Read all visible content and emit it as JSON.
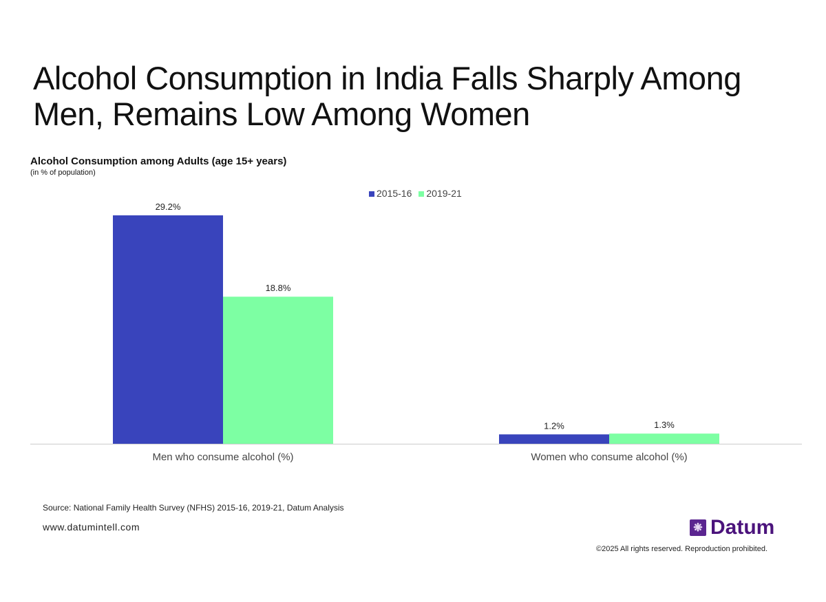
{
  "title": "Alcohol Consumption in India Falls Sharply Among Men, Remains Low Among Women",
  "chart_data": {
    "type": "bar",
    "title": "Alcohol Consumption among Adults (age 15+ years)",
    "subtitle": "(in % of population)",
    "categories": [
      "Men who consume alcohol (%)",
      "Women who consume alcohol (%)"
    ],
    "series": [
      {
        "name": "2015-16",
        "values": [
          29.2,
          1.2
        ],
        "labels": [
          "29.2%",
          "1.2%"
        ],
        "color": "#3944bc"
      },
      {
        "name": "2019-21",
        "values": [
          18.8,
          1.3
        ],
        "labels": [
          "18.8%",
          "1.3%"
        ],
        "color": "#7dffa3"
      }
    ],
    "ylim": [
      0,
      29.2
    ],
    "grid": false,
    "legend": "top-center"
  },
  "footer": {
    "source": "Source: National Family Health Survey (NFHS) 2015-16, 2019-21, Datum Analysis",
    "website": "www.datumintell.com",
    "logo": "Datum",
    "copyright": "©2025 All rights reserved. Reproduction prohibited."
  }
}
